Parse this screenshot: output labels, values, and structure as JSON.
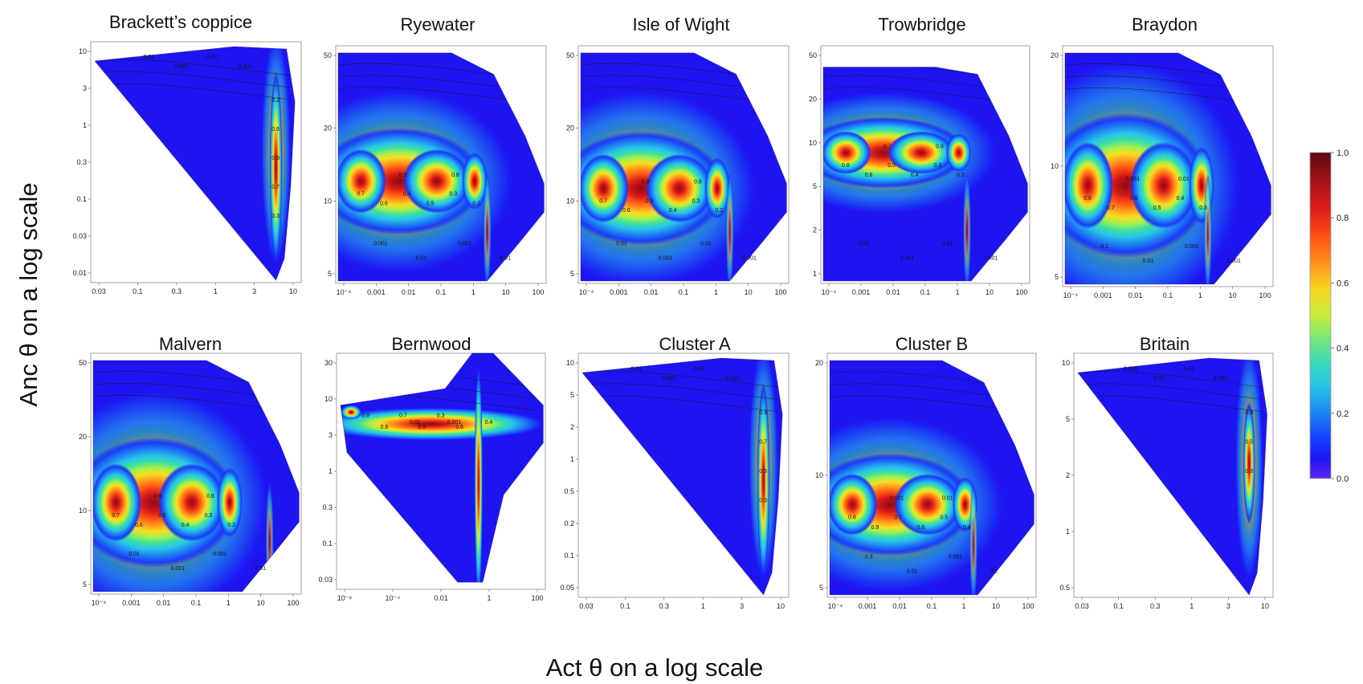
{
  "figure": {
    "x_axis_label": "Act θ on a log scale",
    "y_axis_label": "Anc θ on a log scale"
  },
  "colorbar": {
    "ticks": [
      "1.0",
      "0.8",
      "0.6",
      "0.4",
      "0.2",
      "0.0"
    ],
    "colors": [
      "#5a0a10",
      "#9e1218",
      "#e41e1e",
      "#ff5a14",
      "#ff9a1e",
      "#f5d820",
      "#c8ee3c",
      "#78e678",
      "#3cdcb4",
      "#28c8e6",
      "#1e8cf0",
      "#1446ff",
      "#1e14f0",
      "#5a28f0"
    ]
  },
  "chart_data": [
    {
      "type": "heatmap",
      "title": "Brackett’s coppice",
      "x_ticks": [
        "0.03",
        "0.1",
        "0.3",
        "1",
        "3",
        "10"
      ],
      "y_ticks": [
        "10",
        "3",
        "1",
        "0.3",
        "0.1",
        "0.03",
        "0.01"
      ],
      "contour_labels": [
        "0.01",
        "0.001",
        "0.01",
        "0.001",
        "0.2",
        "0.6",
        "0.9",
        "0.7",
        "0.3"
      ],
      "max_region": "vertical band at Act θ ≈ 5"
    },
    {
      "type": "heatmap",
      "title": "Ryewater",
      "x_ticks": [
        "10⁻⁴",
        "0.001",
        "0.01",
        "0.1",
        "1",
        "10",
        "100"
      ],
      "y_ticks": [
        "50",
        "20",
        "10",
        "5"
      ],
      "contour_labels": [
        "0.9",
        "0.8",
        "0.7",
        "0.6",
        "0.4",
        "0.5",
        "0.3",
        "0.2",
        "0.001",
        "0.01",
        "0.001",
        "0.01"
      ],
      "max_region": "horizontal band at Anc θ ≈ 8"
    },
    {
      "type": "heatmap",
      "title": "Isle of Wight",
      "x_ticks": [
        "10⁻⁴",
        "0.001",
        "0.01",
        "0.1",
        "1",
        "10",
        "100"
      ],
      "y_ticks": [
        "50",
        "20",
        "10",
        "5"
      ],
      "contour_labels": [
        "0.9",
        "0.8",
        "0.7",
        "0.6",
        "0.5",
        "0.4",
        "0.3",
        "0.2",
        "0.01",
        "0.001",
        "0.01",
        "0.001"
      ],
      "max_region": "horizontal band at Anc θ ≈ 9"
    },
    {
      "type": "heatmap",
      "title": "Trowbridge",
      "x_ticks": [
        "10⁻⁴",
        "0.001",
        "0.01",
        "0.1",
        "1",
        "10",
        "100"
      ],
      "y_ticks": [
        "50",
        "20",
        "10",
        "5",
        "2",
        "1"
      ],
      "contour_labels": [
        "0.7",
        "0.9",
        "0.8",
        "0.6",
        "0.5",
        "0.4",
        "0.3",
        "0.2",
        "0.01",
        "0.001",
        "0.01",
        "0.001"
      ],
      "max_region": "horizontal band at Anc θ ≈ 7"
    },
    {
      "type": "heatmap",
      "title": "Braydon",
      "x_ticks": [
        "10⁻⁴",
        "0.001",
        "0.01",
        "0.1",
        "1",
        "10",
        "100"
      ],
      "y_ticks": [
        "20",
        "10",
        "5"
      ],
      "contour_labels": [
        "0.001",
        "0.01",
        "0.8",
        "0.7",
        "0.6",
        "0.5",
        "0.4",
        "0.3",
        "0.1",
        "0.01",
        "0.001",
        "0.001"
      ],
      "max_region": "horizontal band at Anc θ ≈ 6.5"
    },
    {
      "type": "heatmap",
      "title": "Malvern",
      "x_ticks": [
        "10⁻⁴",
        "0.001",
        "0.01",
        "0.1",
        "1",
        "10",
        "100"
      ],
      "y_ticks": [
        "50",
        "20",
        "10",
        "5"
      ],
      "contour_labels": [
        "0.9",
        "0.8",
        "0.7",
        "0.6",
        "0.5",
        "0.4",
        "0.3",
        "0.2",
        "0.01",
        "0.001",
        "0.001",
        "0.01"
      ],
      "max_region": "horizontal band at Anc θ ≈ 9"
    },
    {
      "type": "heatmap",
      "title": "Bernwood",
      "x_ticks": [
        "10⁻⁶",
        "10⁻⁴",
        "0.01",
        "1",
        "100"
      ],
      "y_ticks": [
        "30",
        "10",
        "3",
        "1",
        "0.3",
        "0.1",
        "0.03"
      ],
      "contour_labels": [
        "0.9",
        "0.8",
        "0.7",
        "0.5",
        "0.3",
        "0.6",
        "0.01",
        "0.001",
        "0.4"
      ],
      "max_region": "horizontal band at Anc θ ≈ 5 and vertical band at Act θ ≈ 3"
    },
    {
      "type": "heatmap",
      "title": "Cluster A",
      "x_ticks": [
        "0.03",
        "0.1",
        "0.3",
        "1",
        "3",
        "10"
      ],
      "y_ticks": [
        "10",
        "5",
        "2",
        "1",
        "0.5",
        "0.2",
        "0.1",
        "0.05"
      ],
      "contour_labels": [
        "0.01",
        "0.001",
        "0.01",
        "0.001",
        "0.9",
        "0.7",
        "0.5",
        "0.3"
      ],
      "max_region": "vertical band at Act θ ≈ 5"
    },
    {
      "type": "heatmap",
      "title": "Cluster B",
      "x_ticks": [
        "10⁻⁴",
        "0.001",
        "0.01",
        "0.1",
        "1",
        "10",
        "100"
      ],
      "y_ticks": [
        "20",
        "10",
        "5"
      ],
      "contour_labels": [
        "0.001",
        "0.01",
        "0.8",
        "0.9",
        "0.7",
        "0.6",
        "0.5",
        "0.4",
        "0.3",
        "0.01",
        "0.001",
        "0.2"
      ],
      "max_region": "horizontal band at Anc θ ≈ 7"
    },
    {
      "type": "heatmap",
      "title": "Britain",
      "x_ticks": [
        "0.03",
        "0.1",
        "0.3",
        "1",
        "3",
        "10"
      ],
      "y_ticks": [
        "10",
        "5",
        "2",
        "1",
        "0.5"
      ],
      "contour_labels": [
        "0.001",
        "0.01",
        "0.01",
        "0.001",
        "0.9",
        "0.5",
        "0.3"
      ],
      "max_region": "vertical band at Act θ ≈ 6"
    }
  ]
}
